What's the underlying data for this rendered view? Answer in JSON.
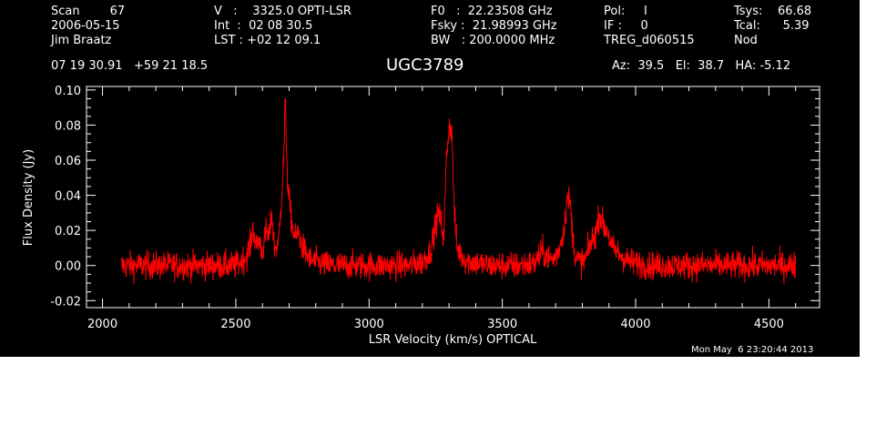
{
  "header": {
    "col1": [
      "Scan        67",
      "2006-05-15",
      "Jim Braatz"
    ],
    "col2": [
      "V   :    3325.0 OPTI-LSR",
      "Int  :  02 08 30.5",
      "LST : +02 12 09.1"
    ],
    "col3": [
      "F0   :  22.23508 GHz",
      "Fsky :  21.98993 GHz",
      "BW   : 200.0000 MHz"
    ],
    "col4": [
      "Pol:     I",
      "IF :     0",
      "TREG_d060515"
    ],
    "col5": [
      "Tsys:    66.68",
      "Tcal:      5.39",
      "Nod"
    ],
    "coords": "07 19 30.91   +59 21 18.5",
    "source": "UGC3789",
    "pointing": "Az:  39.5   El:  38.7   HA: -5.12",
    "timestamp": "Mon May  6 23:20:44 2013"
  },
  "chart_data": {
    "type": "line",
    "xlabel": "LSR Velocity (km/s) OPTICAL",
    "ylabel": "Flux Density (Jy)",
    "xlim": [
      1940,
      4690
    ],
    "ylim": [
      -0.024,
      0.102
    ],
    "xticks": [
      2000,
      2500,
      3000,
      3500,
      4000,
      4500
    ],
    "xtick_labels": [
      "2000",
      "2500",
      "3000",
      "3500",
      "4000",
      "4500"
    ],
    "yticks": [
      -0.02,
      0.0,
      0.02,
      0.04,
      0.06,
      0.08,
      0.1
    ],
    "ytick_labels": [
      "-0.02",
      "0.00",
      "0.02",
      "0.04",
      "0.06",
      "0.08",
      "0.10"
    ],
    "series": [
      {
        "color": "#ff0000",
        "noise_sigma": 0.004,
        "x": [
          2070,
          2300,
          2500,
          2540,
          2555,
          2565,
          2575,
          2585,
          2600,
          2615,
          2625,
          2635,
          2645,
          2660,
          2670,
          2680,
          2685,
          2690,
          2695,
          2705,
          2715,
          2725,
          2735,
          2745,
          2760,
          2780,
          2850,
          3000,
          3150,
          3200,
          3230,
          3245,
          3260,
          3270,
          3280,
          3290,
          3300,
          3310,
          3320,
          3330,
          3360,
          3450,
          3550,
          3620,
          3650,
          3670,
          3690,
          3710,
          3730,
          3745,
          3755,
          3765,
          3775,
          3790,
          3810,
          3830,
          3850,
          3865,
          3880,
          3895,
          3910,
          3930,
          3950,
          3980,
          4050,
          4300,
          4600
        ],
        "y": [
          0.0,
          0.0,
          0.0,
          0.005,
          0.012,
          0.022,
          0.01,
          0.015,
          0.008,
          0.02,
          0.015,
          0.03,
          0.01,
          0.012,
          0.035,
          0.06,
          0.095,
          0.07,
          0.045,
          0.03,
          0.02,
          0.015,
          0.02,
          0.012,
          0.008,
          0.003,
          0.0,
          0.0,
          0.0,
          0.002,
          0.008,
          0.02,
          0.03,
          0.025,
          0.015,
          0.06,
          0.08,
          0.078,
          0.03,
          0.01,
          0.003,
          0.0,
          0.0,
          0.001,
          0.008,
          0.005,
          0.003,
          0.008,
          0.02,
          0.04,
          0.035,
          0.015,
          0.005,
          0.002,
          0.003,
          0.012,
          0.018,
          0.03,
          0.022,
          0.02,
          0.01,
          0.008,
          0.005,
          0.002,
          0.0,
          0.0,
          0.0
        ]
      }
    ]
  }
}
